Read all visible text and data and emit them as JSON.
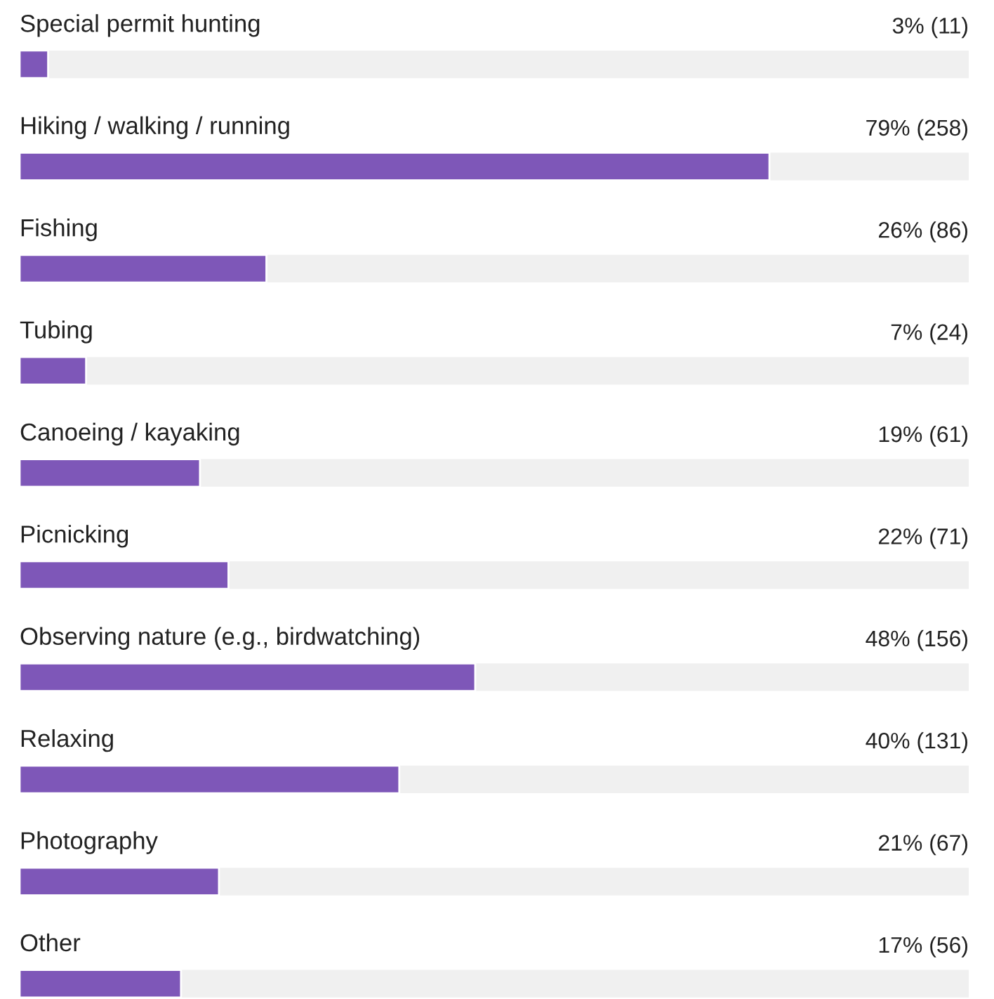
{
  "chart_data": {
    "type": "bar",
    "orientation": "horizontal",
    "xlim": [
      0,
      100
    ],
    "color": "#7e57b8",
    "categories": [
      "Special permit hunting",
      "Hiking / walking / running",
      "Fishing",
      "Tubing",
      "Canoeing / kayaking",
      "Picnicking",
      "Observing nature (e.g., birdwatching)",
      "Relaxing",
      "Photography",
      "Other"
    ],
    "values": [
      3,
      79,
      26,
      7,
      19,
      22,
      48,
      40,
      21,
      17
    ],
    "value_labels": [
      "3% (11)",
      "79% (258)",
      "26% (86)",
      "7% (24)",
      "19% (61)",
      "22% (71)",
      "48% (156)",
      "40% (131)",
      "21% (67)",
      "17% (56)"
    ]
  }
}
